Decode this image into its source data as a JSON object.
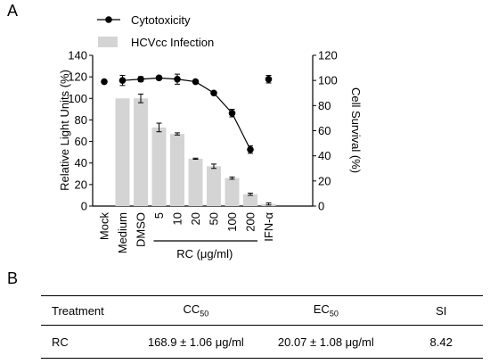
{
  "panel_labels": {
    "a": "A",
    "b": "B"
  },
  "chart_data": {
    "type": "bar+line",
    "legend": [
      {
        "label": "Cytotoxicity",
        "kind": "line-marker",
        "color": "#000000"
      },
      {
        "label": "HCVcc Infection",
        "kind": "bar",
        "color": "#d4d4d4"
      }
    ],
    "legend_position": "top-left",
    "ylabel_left": "Relative Light Units (%)",
    "ylabel_right": "Cell Survival (%)",
    "ylim_left": [
      0,
      140
    ],
    "ylim_right": [
      0,
      120
    ],
    "yticks_left": [
      0,
      20,
      40,
      60,
      80,
      100,
      120,
      140
    ],
    "yticks_right": [
      0,
      20,
      40,
      60,
      80,
      100,
      120
    ],
    "categories": [
      "Mock",
      "Medium",
      "DMSO",
      "5",
      "10",
      "20",
      "50",
      "100",
      "200",
      "IFN-α"
    ],
    "group_label": "RC (μg/ml)",
    "group_categories": [
      "5",
      "10",
      "20",
      "50",
      "100",
      "200"
    ],
    "series": [
      {
        "name": "HCVcc Infection",
        "type": "bar",
        "axis": "left",
        "values": [
          null,
          100,
          100,
          73,
          67,
          44,
          37,
          26,
          11,
          2
        ],
        "errors": [
          null,
          0,
          4,
          4,
          1,
          0.5,
          2,
          1,
          1,
          1
        ]
      },
      {
        "name": "Cytotoxicity",
        "type": "line",
        "axis": "right",
        "values": [
          99,
          100,
          101,
          102,
          101,
          99,
          90,
          74,
          45,
          101
        ],
        "errors": [
          0,
          4,
          2,
          1,
          4,
          1,
          0.5,
          3,
          3,
          3
        ],
        "connected": [
          false,
          true,
          true,
          true,
          true,
          true,
          true,
          true,
          true,
          false
        ]
      }
    ],
    "grid": false
  },
  "table": {
    "headers": {
      "treatment": "Treatment",
      "cc_main": "CC",
      "cc_sub": "50",
      "ec_main": "EC",
      "ec_sub": "50",
      "si": "SI"
    },
    "rows": [
      {
        "treatment": "RC",
        "cc50": "168.9 ± 1.06 μg/ml",
        "ec50": "20.07 ± 1.08 μg/ml",
        "si": "8.42"
      }
    ]
  }
}
